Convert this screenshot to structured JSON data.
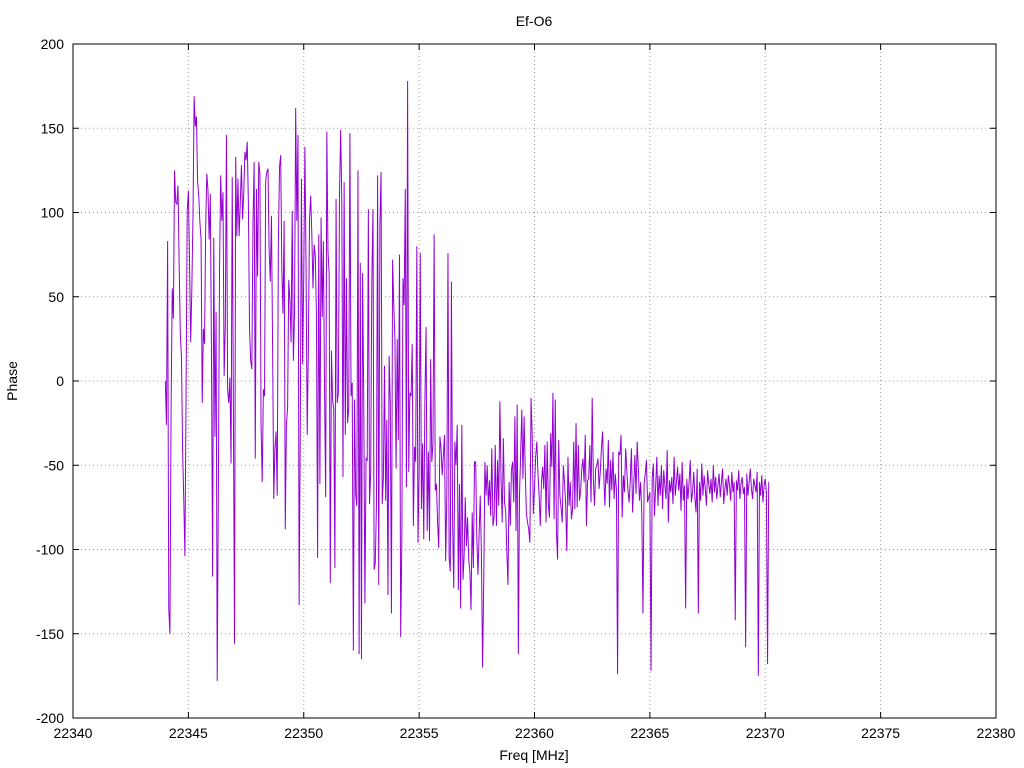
{
  "chart_data": {
    "type": "line",
    "title": "Ef-O6",
    "xlabel": "Freq [MHz]",
    "ylabel": "Phase",
    "xlim": [
      22340,
      22380
    ],
    "ylim": [
      -200,
      200
    ],
    "xticks": [
      22340,
      22345,
      22350,
      22355,
      22360,
      22365,
      22370,
      22375,
      22380
    ],
    "yticks": [
      -200,
      -150,
      -100,
      -50,
      0,
      50,
      100,
      150,
      200
    ],
    "grid": true,
    "legend": "none",
    "series": [
      {
        "color": "#9400d3",
        "x_start": 22344.0,
        "x_step": 0.05,
        "values": [
          0,
          -26,
          83,
          -135,
          -150,
          -18,
          55,
          37,
          125,
          106,
          105,
          116,
          70,
          28,
          14,
          -41,
          -70,
          -104,
          -7,
          101,
          113,
          71,
          23,
          55,
          98,
          169,
          151,
          157,
          118,
          110,
          94,
          84,
          -13,
          31,
          22,
          92,
          123,
          113,
          84,
          111,
          16,
          -116,
          85,
          -33,
          41,
          -178,
          -63,
          66,
          122,
          95,
          112,
          3,
          32,
          146,
          -5,
          -13,
          2,
          -49,
          121,
          -15,
          -156,
          133,
          86,
          120,
          86,
          106,
          128,
          96,
          112,
          136,
          131,
          142,
          106,
          31,
          12,
          7,
          94,
          130,
          -46,
          114,
          62,
          130,
          123,
          -26,
          -60,
          -5,
          -9,
          119,
          124,
          126,
          78,
          59,
          98,
          20,
          -70,
          -40,
          -30,
          -68,
          82,
          127,
          134,
          66,
          40,
          95,
          -88,
          -25,
          -16,
          60,
          48,
          23,
          101,
          12,
          40,
          162,
          95,
          146,
          -133,
          -27,
          120,
          10,
          63,
          139,
          67,
          -32,
          20,
          96,
          110,
          87,
          55,
          81,
          74,
          40,
          -105,
          87,
          -61,
          97,
          38,
          83,
          -4,
          -69,
          148,
          77,
          64,
          -120,
          18,
          -11,
          -17,
          -111,
          108,
          -13,
          -7,
          112,
          149,
          105,
          -57,
          118,
          -32,
          61,
          -25,
          -16,
          147,
          -9,
          -1,
          -160,
          -11,
          -67,
          -74,
          125,
          -162,
          70,
          -165,
          64,
          -11,
          -132,
          -46,
          -47,
          102,
          -73,
          -55,
          59,
          102,
          -112,
          -108,
          -74,
          122,
          -121,
          93,
          124,
          -73,
          -58,
          9,
          -71,
          -23,
          -127,
          15,
          -13,
          -138,
          72,
          45,
          25,
          -52,
          25,
          -35,
          75,
          -152,
          -96,
          61,
          45,
          114,
          -63,
          178,
          -54,
          -7,
          -9,
          22,
          -86,
          -39,
          -48,
          80,
          -96,
          -54,
          76,
          -76,
          -37,
          -94,
          -12,
          32,
          -89,
          -42,
          -95,
          13,
          -48,
          -37,
          87,
          -65,
          -61,
          -84,
          -99,
          -33,
          -40,
          -56,
          -44,
          -32,
          -107,
          -68,
          76,
          -105,
          -113,
          59,
          -83,
          -123,
          -36,
          -50,
          -26,
          -124,
          -61,
          -135,
          -26,
          -118,
          -104,
          -69,
          -98,
          -81,
          -106,
          -113,
          -136,
          -78,
          -111,
          -48,
          -48,
          -93,
          -115,
          -91,
          -68,
          -104,
          -170,
          -119,
          -48,
          -68,
          -50,
          -74,
          -59,
          -80,
          -40,
          -86,
          -81,
          -38,
          -86,
          -47,
          -74,
          -12,
          -58,
          -84,
          -34,
          -72,
          -77,
          -101,
          -121,
          -60,
          -86,
          -53,
          -48,
          -72,
          -21,
          -89,
          -14,
          -162,
          -68,
          -43,
          -17,
          -58,
          -21,
          -54,
          -79,
          -84,
          -88,
          -96,
          -10,
          -32,
          -79,
          -64,
          -45,
          -36,
          -55,
          -68,
          -86,
          -60,
          -51,
          -64,
          -38,
          -84,
          -36,
          -73,
          -81,
          -31,
          -51,
          -7,
          -82,
          -11,
          -89,
          -106,
          -35,
          -68,
          -75,
          -84,
          -50,
          -60,
          -73,
          -101,
          -45,
          -74,
          -60,
          -82,
          -76,
          -36,
          -76,
          -25,
          -75,
          -38,
          -71,
          -65,
          -52,
          -46,
          -60,
          -32,
          -86,
          -59,
          -58,
          -38,
          -72,
          -10,
          -58,
          -74,
          -52,
          -50,
          -46,
          -64,
          -54,
          -40,
          -30,
          -55,
          -74,
          -52,
          -61,
          -35,
          -75,
          -47,
          -65,
          -42,
          -70,
          -55,
          -64,
          -174,
          -42,
          -44,
          -32,
          -81,
          -56,
          -66,
          -40,
          -53,
          -65,
          -72,
          -59,
          -40,
          -78,
          -62,
          -44,
          -67,
          -36,
          -52,
          -71,
          -60,
          -79,
          -138,
          -61,
          -55,
          -47,
          -72,
          -69,
          -66,
          -172,
          -58,
          -49,
          -80,
          -63,
          -45,
          -74,
          -56,
          -68,
          -50,
          -76,
          -53,
          -62,
          -70,
          -41,
          -84,
          -59,
          -66,
          -57,
          -73,
          -45,
          -68,
          -60,
          -51,
          -65,
          -55,
          -77,
          -48,
          -71,
          -62,
          -135,
          -58,
          -70,
          -60,
          -47,
          -72,
          -66,
          -54,
          -69,
          -78,
          -52,
          -138,
          -60,
          -71,
          -49,
          -68,
          -56,
          -64,
          -74,
          -53,
          -61,
          -67,
          -58,
          -72,
          -50,
          -66,
          -57,
          -70,
          -62,
          -55,
          -69,
          -60,
          -52,
          -73,
          -64,
          -58,
          -68,
          -56,
          -62,
          -71,
          -54,
          -66,
          -60,
          -142,
          -59,
          -65,
          -53,
          -70,
          -61,
          -57,
          -67,
          -63,
          -158,
          -55,
          -68,
          -60,
          -52,
          -64,
          -70,
          -58,
          -62,
          -66,
          -54,
          -175,
          -60,
          -68,
          -56,
          -72,
          -62,
          -58,
          -66,
          -168,
          -60
        ]
      }
    ]
  }
}
